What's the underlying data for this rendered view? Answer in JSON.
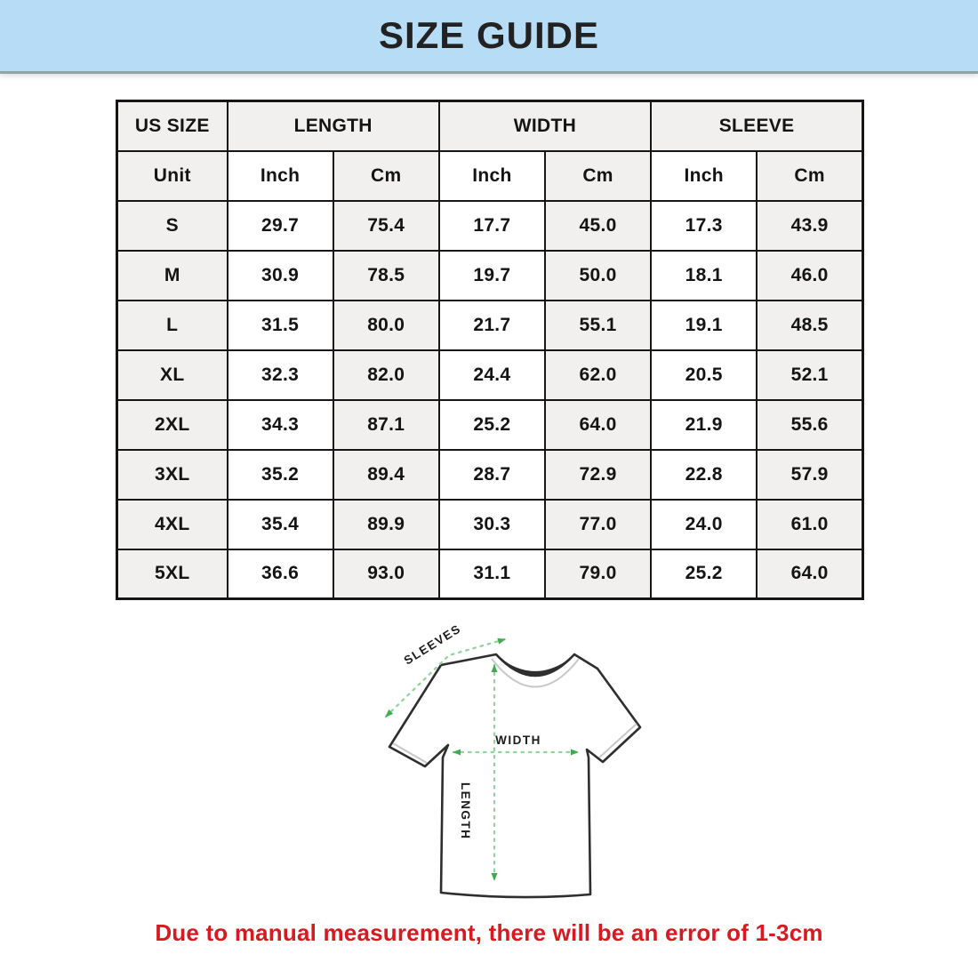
{
  "page": {
    "title": "SIZE GUIDE",
    "note": "Due to manual measurement, there will be an error of 1-3cm"
  },
  "table": {
    "group_headers": [
      "US SIZE",
      "LENGTH",
      "WIDTH",
      "SLEEVE"
    ],
    "unit_row": [
      "Unit",
      "Inch",
      "Cm",
      "Inch",
      "Cm",
      "Inch",
      "Cm"
    ],
    "rows": [
      {
        "size": "S",
        "values": [
          "29.7",
          "75.4",
          "17.7",
          "45.0",
          "17.3",
          "43.9"
        ]
      },
      {
        "size": "M",
        "values": [
          "30.9",
          "78.5",
          "19.7",
          "50.0",
          "18.1",
          "46.0"
        ]
      },
      {
        "size": "L",
        "values": [
          "31.5",
          "80.0",
          "21.7",
          "55.1",
          "19.1",
          "48.5"
        ]
      },
      {
        "size": "XL",
        "values": [
          "32.3",
          "82.0",
          "24.4",
          "62.0",
          "20.5",
          "52.1"
        ]
      },
      {
        "size": "2XL",
        "values": [
          "34.3",
          "87.1",
          "25.2",
          "64.0",
          "21.9",
          "55.6"
        ]
      },
      {
        "size": "3XL",
        "values": [
          "35.2",
          "89.4",
          "28.7",
          "72.9",
          "22.8",
          "57.9"
        ]
      },
      {
        "size": "4XL",
        "values": [
          "35.4",
          "89.9",
          "30.3",
          "77.0",
          "24.0",
          "61.0"
        ]
      },
      {
        "size": "5XL",
        "values": [
          "36.6",
          "93.0",
          "31.1",
          "79.0",
          "25.2",
          "64.0"
        ]
      }
    ]
  },
  "diagram": {
    "sleeves_label": "SLEEVES",
    "width_label": "WIDTH",
    "length_label": "LENGTH"
  },
  "colors": {
    "banner_bg": "#b7ddf6",
    "table_border": "#161616",
    "cell_gray": "#f1f0ee",
    "arrow_green": "#41ab51",
    "dash_green": "#93d39e",
    "note_red": "#d8191f"
  }
}
